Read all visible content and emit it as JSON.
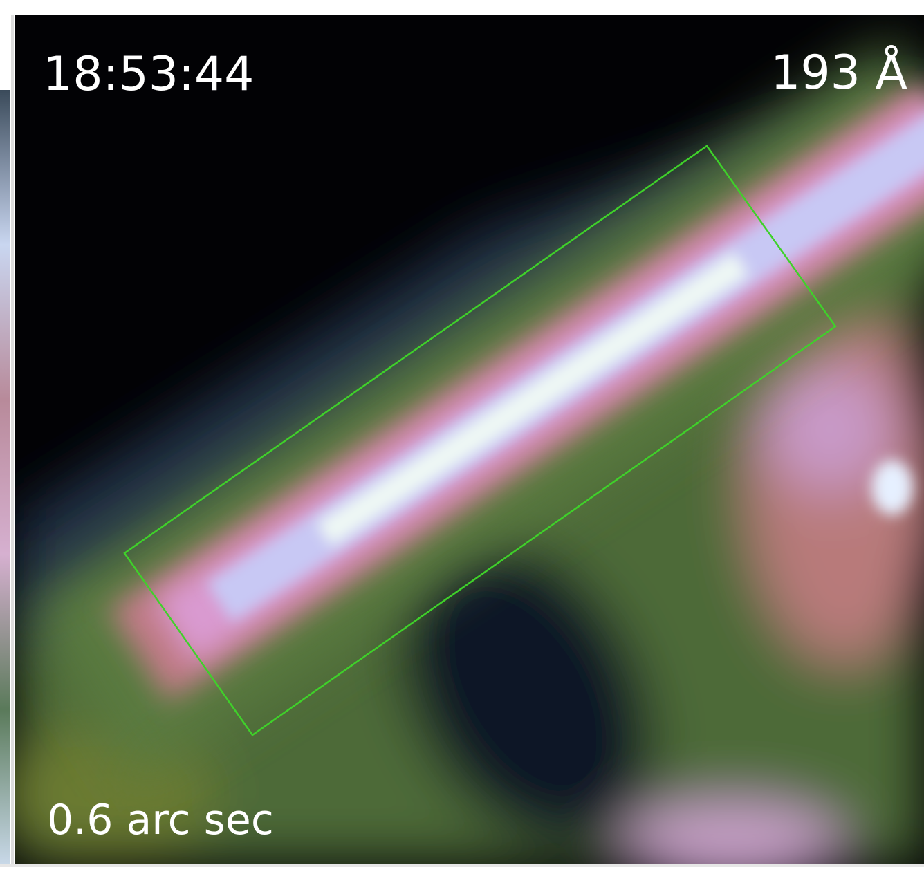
{
  "image": {
    "timestamp": "18:53:44",
    "wavelength": "193 Å",
    "scale_label": "0.6 arc sec"
  }
}
